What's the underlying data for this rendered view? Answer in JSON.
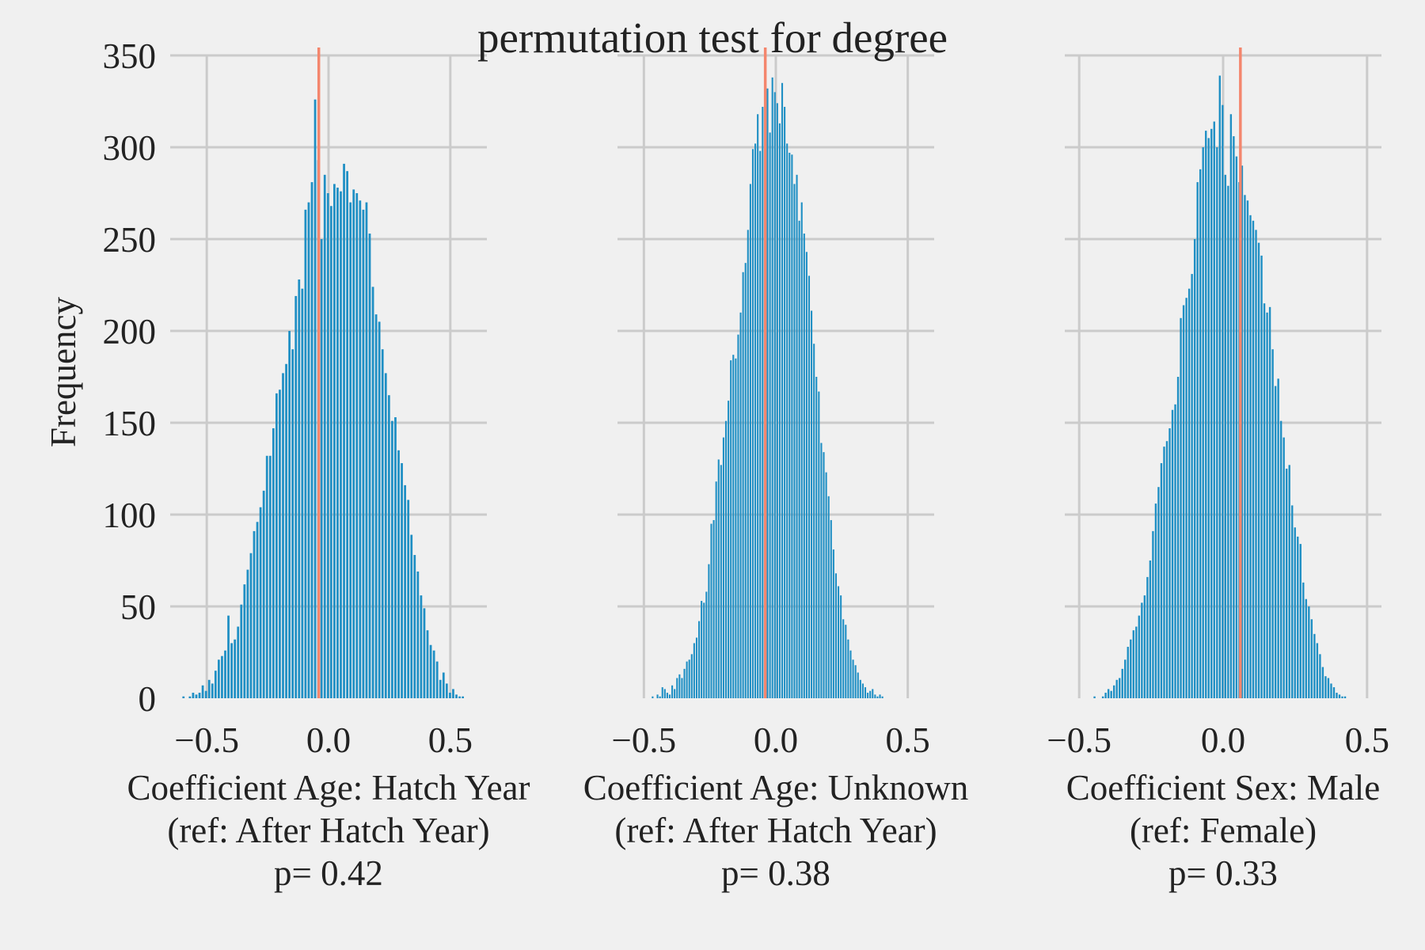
{
  "figure": {
    "suptitle": "permutation test for degree",
    "ylabel": "Frequency",
    "colors": {
      "background": "#f0f0f0",
      "grid": "#cbcbcb",
      "bars": "#1f8fc4",
      "observed_line": "#f4866d",
      "text": "#222222"
    }
  },
  "chart_data": [
    {
      "type": "bar",
      "title": "",
      "xlabel_lines": [
        "Coefficient Age: Hatch Year",
        "(ref: After Hatch Year)",
        "p= 0.42"
      ],
      "ylabel": "Frequency",
      "xlim": [
        -0.65,
        0.65
      ],
      "ylim": [
        0,
        350
      ],
      "xticks": [
        -0.5,
        0.0,
        0.5
      ],
      "xtick_labels": [
        "−0.5",
        "0.0",
        "0.5"
      ],
      "yticks": [
        0,
        50,
        100,
        150,
        200,
        250,
        300,
        350
      ],
      "ytick_labels": [
        "0",
        "50",
        "100",
        "150",
        "200",
        "250",
        "300",
        "350"
      ],
      "grid": true,
      "histogram": {
        "x_start": -0.6,
        "x_end": 0.56,
        "bin_width": 0.0116,
        "counts": [
          1,
          0,
          1,
          3,
          2,
          3,
          7,
          4,
          10,
          8,
          15,
          21,
          23,
          26,
          45,
          30,
          32,
          39,
          51,
          62,
          70,
          79,
          91,
          96,
          104,
          113,
          132,
          132,
          147,
          166,
          168,
          177,
          182,
          200,
          190,
          219,
          228,
          223,
          266,
          270,
          281,
          326,
          293,
          250,
          285,
          275,
          268,
          280,
          278,
          276,
          291,
          287,
          270,
          277,
          275,
          271,
          266,
          270,
          253,
          224,
          209,
          205,
          190,
          177,
          165,
          151,
          153,
          135,
          128,
          116,
          108,
          89,
          78,
          69,
          56,
          49,
          37,
          29,
          26,
          20,
          10,
          14,
          8,
          3,
          5,
          2,
          1,
          1
        ]
      },
      "observed_value": -0.04
    },
    {
      "type": "bar",
      "title": "",
      "xlabel_lines": [
        "Coefficient Age: Unknown",
        "(ref: After Hatch Year)",
        "p= 0.38"
      ],
      "xlim": [
        -0.6,
        0.6
      ],
      "ylim": [
        0,
        350
      ],
      "xticks": [
        -0.5,
        0.0,
        0.5
      ],
      "xtick_labels": [
        "−0.5",
        "0.0",
        "0.5"
      ],
      "yticks": [
        0,
        50,
        100,
        150,
        200,
        250,
        300,
        350
      ],
      "ytick_labels": [
        "0",
        "50",
        "100",
        "150",
        "200",
        "250",
        "300",
        "350"
      ],
      "grid": true,
      "histogram": {
        "x_start": -0.47,
        "x_end": 0.41,
        "bin_width": 0.0088,
        "counts": [
          1,
          0,
          2,
          1,
          6,
          5,
          3,
          2,
          7,
          5,
          11,
          13,
          11,
          16,
          20,
          21,
          24,
          30,
          33,
          42,
          53,
          52,
          58,
          73,
          95,
          97,
          118,
          130,
          127,
          142,
          151,
          162,
          184,
          187,
          185,
          198,
          210,
          232,
          237,
          255,
          280,
          299,
          302,
          318,
          298,
          322,
          312,
          332,
          308,
          338,
          330,
          324,
          313,
          335,
          322,
          302,
          297,
          296,
          280,
          285,
          260,
          270,
          253,
          243,
          230,
          211,
          193,
          175,
          167,
          139,
          134,
          123,
          110,
          97,
          81,
          68,
          61,
          56,
          43,
          40,
          32,
          26,
          21,
          18,
          14,
          10,
          8,
          6,
          3,
          4,
          5,
          2,
          1,
          2,
          1
        ]
      },
      "observed_value": -0.04
    },
    {
      "type": "bar",
      "title": "",
      "xlabel_lines": [
        "Coefficient Sex: Male",
        "(ref: Female)",
        "p= 0.33"
      ],
      "xlim": [
        -0.55,
        0.55
      ],
      "ylim": [
        0,
        350
      ],
      "xticks": [
        -0.5,
        0.0,
        0.5
      ],
      "xtick_labels": [
        "−0.5",
        "0.0",
        "0.5"
      ],
      "yticks": [
        0,
        50,
        100,
        150,
        200,
        250,
        300,
        350
      ],
      "ytick_labels": [
        "0",
        "50",
        "100",
        "150",
        "200",
        "250",
        "300",
        "350"
      ],
      "grid": true,
      "histogram": {
        "x_start": -0.45,
        "x_end": 0.43,
        "bin_width": 0.0088,
        "counts": [
          1,
          0,
          0,
          1,
          3,
          5,
          4,
          7,
          10,
          11,
          16,
          21,
          28,
          32,
          37,
          39,
          45,
          52,
          56,
          66,
          75,
          91,
          106,
          115,
          128,
          137,
          140,
          147,
          157,
          160,
          175,
          207,
          214,
          218,
          223,
          231,
          250,
          281,
          288,
          300,
          309,
          305,
          310,
          314,
          300,
          339,
          323,
          285,
          279,
          318,
          306,
          295,
          281,
          290,
          274,
          271,
          263,
          260,
          255,
          248,
          241,
          215,
          210,
          213,
          190,
          170,
          174,
          151,
          142,
          125,
          127,
          105,
          93,
          88,
          84,
          63,
          54,
          50,
          43,
          35,
          30,
          24,
          17,
          12,
          11,
          8,
          6,
          3,
          2,
          1,
          1
        ]
      },
      "observed_value": 0.06
    }
  ]
}
